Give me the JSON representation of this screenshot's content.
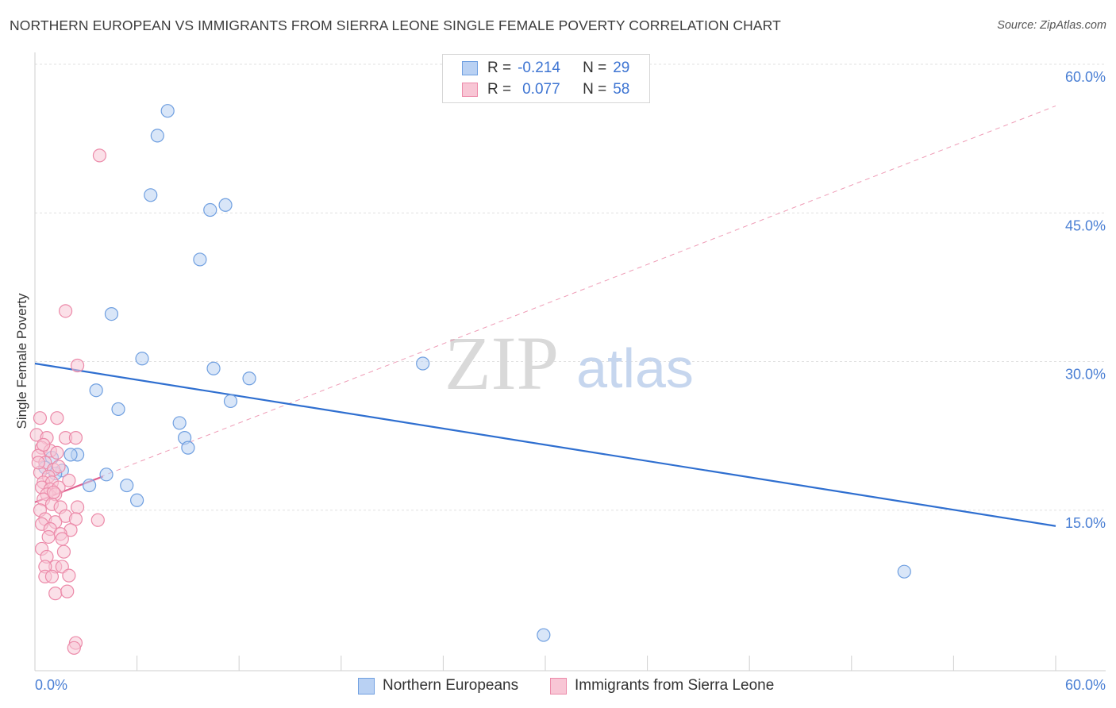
{
  "title": "NORTHERN EUROPEAN VS IMMIGRANTS FROM SIERRA LEONE SINGLE FEMALE POVERTY CORRELATION CHART",
  "source": "Source: ZipAtlas.com",
  "watermark": {
    "zip": "ZIP",
    "atlas": "atlas"
  },
  "legend": {
    "r_label": "R =",
    "n_label": "N =",
    "series": [
      {
        "name": "Northern Europeans",
        "r": "-0.214",
        "n": "29",
        "fill": "#b9d1f3",
        "stroke": "#6f9fe0"
      },
      {
        "name": "Immigrants from Sierra Leone",
        "r": "0.077",
        "n": "58",
        "fill": "#f8c6d5",
        "stroke": "#ec8aa9"
      }
    ]
  },
  "chart_data": {
    "type": "scatter",
    "title": "NORTHERN EUROPEAN VS IMMIGRANTS FROM SIERRA LEONE SINGLE FEMALE POVERTY CORRELATION CHART",
    "xlabel": "",
    "ylabel": "Single Female Poverty",
    "xlim": [
      0,
      60
    ],
    "ylim": [
      0,
      60
    ],
    "x_tick_labels": [
      "0.0%",
      "60.0%"
    ],
    "y_ticks": [
      15,
      30,
      45,
      60
    ],
    "y_tick_labels": [
      "15.0%",
      "30.0%",
      "45.0%",
      "60.0%"
    ],
    "grid": true,
    "series": [
      {
        "name": "Northern Europeans",
        "color": "#6f9fe0",
        "fill": "#b9d1f3",
        "points": [
          [
            7.8,
            56.5
          ],
          [
            7.2,
            54.0
          ],
          [
            6.8,
            48.0
          ],
          [
            10.3,
            46.5
          ],
          [
            11.2,
            47.0
          ],
          [
            9.7,
            41.5
          ],
          [
            4.5,
            36.0
          ],
          [
            6.3,
            31.5
          ],
          [
            10.5,
            30.5
          ],
          [
            12.6,
            29.5
          ],
          [
            22.8,
            31.0
          ],
          [
            3.6,
            28.3
          ],
          [
            11.5,
            27.2
          ],
          [
            4.9,
            26.4
          ],
          [
            8.5,
            25.0
          ],
          [
            8.8,
            23.5
          ],
          [
            9.0,
            22.5
          ],
          [
            2.5,
            21.8
          ],
          [
            2.1,
            21.8
          ],
          [
            1.6,
            20.2
          ],
          [
            1.2,
            19.9
          ],
          [
            4.2,
            19.8
          ],
          [
            3.2,
            18.7
          ],
          [
            5.4,
            18.7
          ],
          [
            6.0,
            17.2
          ],
          [
            51.1,
            10.0
          ],
          [
            29.9,
            3.6
          ],
          [
            1.0,
            21.5
          ],
          [
            0.6,
            20.5
          ]
        ],
        "trend": {
          "x": [
            0,
            60
          ],
          "y": [
            31.0,
            14.6
          ]
        }
      },
      {
        "name": "Immigrants from Sierra Leone",
        "color": "#ec8aa9",
        "fill": "#f8c6d5",
        "points": [
          [
            3.8,
            52.0
          ],
          [
            1.8,
            36.3
          ],
          [
            2.5,
            30.8
          ],
          [
            0.3,
            25.5
          ],
          [
            1.3,
            25.5
          ],
          [
            0.1,
            23.8
          ],
          [
            0.7,
            23.5
          ],
          [
            1.8,
            23.5
          ],
          [
            2.4,
            23.5
          ],
          [
            0.4,
            22.5
          ],
          [
            0.9,
            22.2
          ],
          [
            1.3,
            22.0
          ],
          [
            0.2,
            21.7
          ],
          [
            0.6,
            21.0
          ],
          [
            1.1,
            20.3
          ],
          [
            0.3,
            20.0
          ],
          [
            0.8,
            19.6
          ],
          [
            0.5,
            19.0
          ],
          [
            1.0,
            19.0
          ],
          [
            0.4,
            18.5
          ],
          [
            0.9,
            18.3
          ],
          [
            1.4,
            18.5
          ],
          [
            0.7,
            17.8
          ],
          [
            1.2,
            17.8
          ],
          [
            0.5,
            17.3
          ],
          [
            1.0,
            16.8
          ],
          [
            1.5,
            16.5
          ],
          [
            0.3,
            16.2
          ],
          [
            2.5,
            16.5
          ],
          [
            1.8,
            15.6
          ],
          [
            0.6,
            15.3
          ],
          [
            1.2,
            15.0
          ],
          [
            2.4,
            15.3
          ],
          [
            3.7,
            15.2
          ],
          [
            0.4,
            14.8
          ],
          [
            0.9,
            14.3
          ],
          [
            2.1,
            14.2
          ],
          [
            1.5,
            13.8
          ],
          [
            0.8,
            13.5
          ],
          [
            1.6,
            13.3
          ],
          [
            0.4,
            12.3
          ],
          [
            1.7,
            12.0
          ],
          [
            0.7,
            11.5
          ],
          [
            1.2,
            10.5
          ],
          [
            0.6,
            10.5
          ],
          [
            1.6,
            10.5
          ],
          [
            2.0,
            9.6
          ],
          [
            0.6,
            9.5
          ],
          [
            1.0,
            9.5
          ],
          [
            1.2,
            7.8
          ],
          [
            1.9,
            8.0
          ],
          [
            2.4,
            2.8
          ],
          [
            2.3,
            2.3
          ],
          [
            0.2,
            21.0
          ],
          [
            1.1,
            18.0
          ],
          [
            2.0,
            19.2
          ],
          [
            0.5,
            22.8
          ],
          [
            1.4,
            20.6
          ]
        ],
        "trend": {
          "x": [
            0,
            4.0
          ],
          "y": [
            17.0,
            19.6
          ]
        },
        "dashed_extension": {
          "x": [
            0,
            60
          ],
          "y": [
            17.0,
            57.0
          ]
        }
      }
    ]
  }
}
